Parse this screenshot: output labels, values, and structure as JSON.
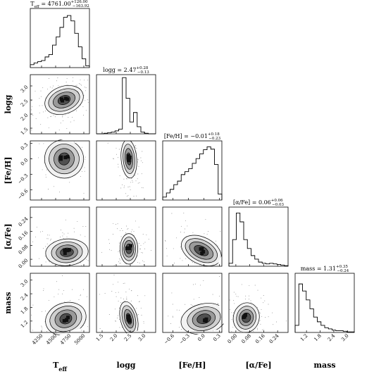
{
  "chart_data": {
    "type": "corner",
    "parameters": [
      {
        "name": "T",
        "name_sub": "eff",
        "label": "Teff",
        "range": [
          4050,
          5100
        ],
        "ticks": [
          4250,
          4500,
          4750,
          5000
        ],
        "tick_labels": [
          "4250",
          "4500",
          "4750",
          "5000"
        ],
        "title_value": "4761.00",
        "title_plus": "+126.00",
        "title_minus": "−163.92",
        "hist_counts": [
          0.05,
          0.08,
          0.1,
          0.12,
          0.18,
          0.22,
          0.38,
          0.52,
          0.68,
          0.85,
          0.88,
          0.79,
          0.58,
          0.35,
          0.15,
          0.03
        ]
      },
      {
        "name": "logg",
        "name_sub": "",
        "label": "logg",
        "range": [
          1.3,
          3.4
        ],
        "ticks": [
          1.5,
          2.0,
          2.5,
          3.0
        ],
        "tick_labels": [
          "1.5",
          "2.0",
          "2.5",
          "3.0"
        ],
        "title_value": "2.47",
        "title_plus": "+0.28",
        "title_minus": "−0.13",
        "hist_counts": [
          0.0,
          0.0,
          0.01,
          0.02,
          0.03,
          0.05,
          0.08,
          0.95,
          0.6,
          0.2,
          0.36,
          0.12,
          0.03,
          0.01,
          0.0,
          0.0
        ]
      },
      {
        "name": "[Fe/H]",
        "name_sub": "",
        "label": "[Fe/H]",
        "range": [
          -0.8,
          0.35
        ],
        "ticks": [
          -0.6,
          -0.3,
          0.0,
          0.3
        ],
        "tick_labels": [
          "−0.6",
          "−0.3",
          "0.0",
          "0.3"
        ],
        "title_value": "−0.01",
        "title_plus": "+0.18",
        "title_minus": "−0.23",
        "hist_counts": [
          0.05,
          0.12,
          0.18,
          0.26,
          0.32,
          0.43,
          0.48,
          0.53,
          0.62,
          0.7,
          0.78,
          0.85,
          0.9,
          0.86,
          0.6,
          0.1
        ]
      },
      {
        "name": "[α/Fe]",
        "name_sub": "",
        "label": "[α/Fe]",
        "range": [
          -0.04,
          0.3
        ],
        "ticks": [
          0.0,
          0.08,
          0.16,
          0.24
        ],
        "tick_labels": [
          "0.00",
          "0.08",
          "0.16",
          "0.24"
        ],
        "title_value": "0.06",
        "title_plus": "+0.06",
        "title_minus": "−0.03",
        "hist_counts": [
          0.05,
          0.45,
          0.9,
          0.75,
          0.45,
          0.3,
          0.18,
          0.12,
          0.07,
          0.05,
          0.04,
          0.05,
          0.04,
          0.03,
          0.02,
          0.01
        ]
      },
      {
        "name": "mass",
        "name_sub": "",
        "label": "mass",
        "range": [
          0.7,
          3.3
        ],
        "ticks": [
          1.2,
          1.8,
          2.4,
          3.0
        ],
        "tick_labels": [
          "1.2",
          "1.8",
          "2.4",
          "3.0"
        ],
        "title_value": "1.31",
        "title_plus": "+0.35",
        "title_minus": "−0.24",
        "hist_counts": [
          0.12,
          0.82,
          0.7,
          0.55,
          0.4,
          0.26,
          0.18,
          0.12,
          0.08,
          0.06,
          0.04,
          0.03,
          0.03,
          0.02,
          0.01,
          0.01
        ]
      }
    ],
    "pair_density": [
      {
        "x": 0,
        "y": 1,
        "center": [
          4650,
          2.5
        ],
        "sigma": [
          160,
          0.22
        ],
        "rho": 0.45
      },
      {
        "x": 0,
        "y": 2,
        "center": [
          4650,
          0.0
        ],
        "sigma": [
          150,
          0.17
        ],
        "rho": -0.3
      },
      {
        "x": 1,
        "y": 2,
        "center": [
          2.45,
          0.0
        ],
        "sigma": [
          0.12,
          0.17
        ],
        "rho": 0.1
      },
      {
        "x": 0,
        "y": 3,
        "center": [
          4700,
          0.04
        ],
        "sigma": [
          170,
          0.035
        ],
        "rho": 0.1
      },
      {
        "x": 1,
        "y": 3,
        "center": [
          2.45,
          0.06
        ],
        "sigma": [
          0.15,
          0.04
        ],
        "rho": 0.0
      },
      {
        "x": 2,
        "y": 3,
        "center": [
          -0.05,
          0.05
        ],
        "sigma": [
          0.2,
          0.035
        ],
        "rho": -0.6
      },
      {
        "x": 3,
        "y": 3,
        "center": [
          0.06,
          0.06
        ],
        "sigma": [
          0.03,
          0.03
        ],
        "rho": 0.0
      },
      {
        "x": 0,
        "y": 4,
        "center": [
          4680,
          1.3
        ],
        "sigma": [
          160,
          0.32
        ],
        "rho": 0.4
      },
      {
        "x": 1,
        "y": 4,
        "center": [
          2.45,
          1.3
        ],
        "sigma": [
          0.13,
          0.35
        ],
        "rho": 0.3
      },
      {
        "x": 2,
        "y": 4,
        "center": [
          0.0,
          1.3
        ],
        "sigma": [
          0.2,
          0.3
        ],
        "rho": 0.3
      },
      {
        "x": 3,
        "y": 4,
        "center": [
          0.06,
          1.35
        ],
        "sigma": [
          0.035,
          0.3
        ],
        "rho": -0.3
      }
    ]
  }
}
